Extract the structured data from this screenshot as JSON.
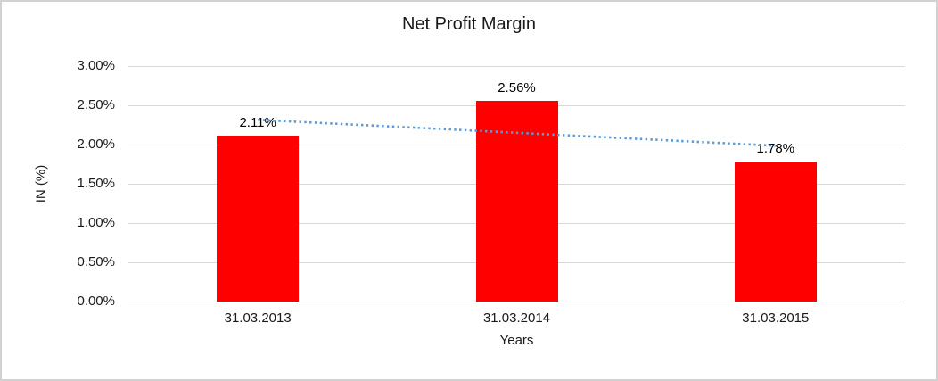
{
  "chart_data": {
    "type": "bar",
    "title": "Net Profit Margin",
    "xlabel": "Years",
    "ylabel": "IN (%)",
    "categories": [
      "31.03.2013",
      "31.03.2014",
      "31.03.2015"
    ],
    "series": [
      {
        "name": "Net Profit Margin",
        "values": [
          2.11,
          2.56,
          1.78
        ],
        "color": "#ff0000"
      }
    ],
    "data_labels": [
      "2.11%",
      "2.56%",
      "1.78%"
    ],
    "y_ticks": [
      {
        "value": 0.0,
        "label": "0.00%"
      },
      {
        "value": 0.5,
        "label": "0.50%"
      },
      {
        "value": 1.0,
        "label": "1.00%"
      },
      {
        "value": 1.5,
        "label": "1.50%"
      },
      {
        "value": 2.0,
        "label": "2.00%"
      },
      {
        "value": 2.5,
        "label": "2.50%"
      },
      {
        "value": 3.0,
        "label": "3.00%"
      }
    ],
    "ylim": [
      0,
      3
    ],
    "grid": "horizontal",
    "legend_position": "none",
    "trendline": {
      "type": "linear",
      "style": "dotted",
      "color": "#5b9bd5",
      "endpoint_values": [
        2.315,
        1.985
      ]
    }
  },
  "style_colors": {
    "bar": "#ff0000",
    "trendline": "#5b9bd5",
    "gridline": "#d9d9d9",
    "axis_line": "#bfbfbf",
    "text": "#1a1a1a",
    "frame_border": "#d2d2d2"
  }
}
